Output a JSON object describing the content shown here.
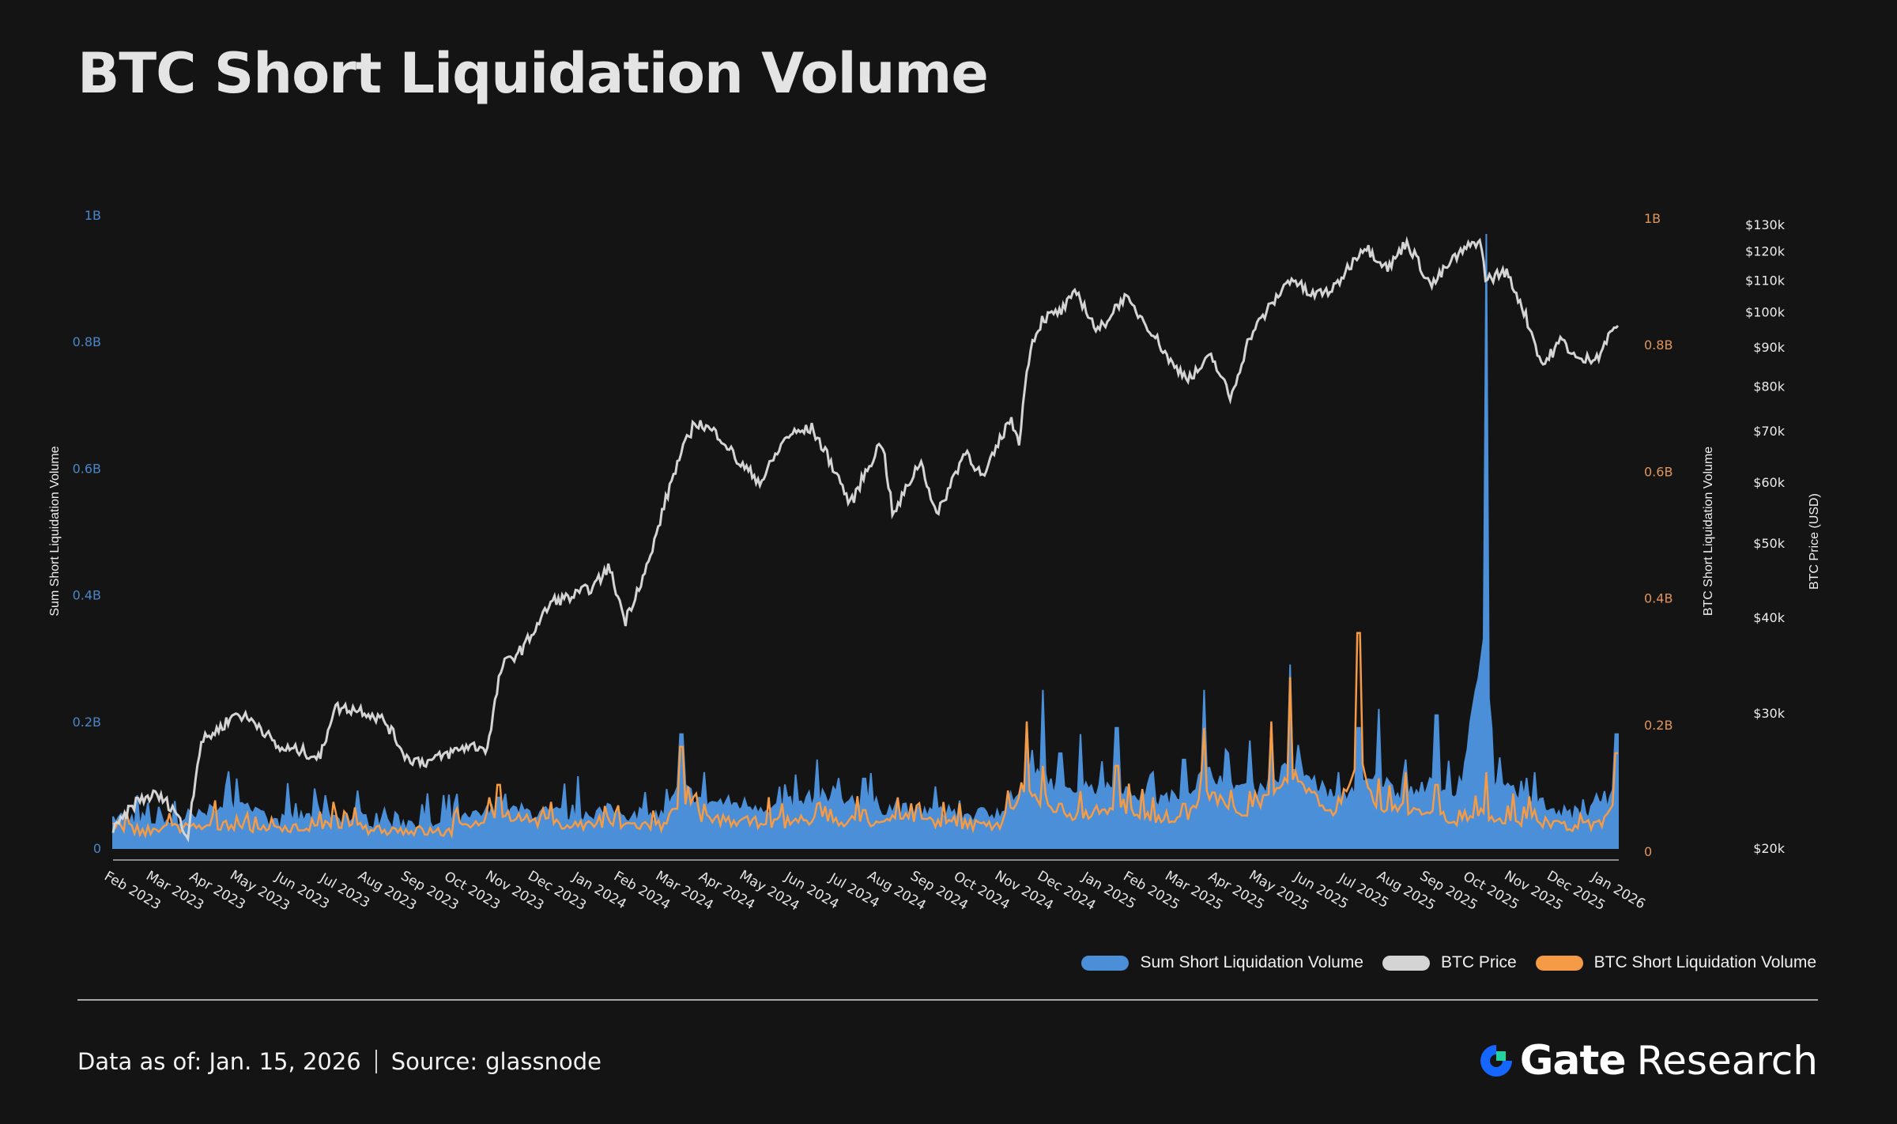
{
  "header": {
    "title": "BTC Short Liquidation Volume"
  },
  "colors": {
    "sum_short": "#4a8fd8",
    "btc_price": "#d4d4d4",
    "btc_short": "#f59a45",
    "background": "#141414",
    "brand_blue": "#1466ff",
    "brand_green": "#21d19f"
  },
  "legend": {
    "items": [
      {
        "label": "Sum Short Liquidation Volume",
        "color": "#4a8fd8"
      },
      {
        "label": "BTC Price",
        "color": "#d4d4d4"
      },
      {
        "label": "BTC Short Liquidation Volume",
        "color": "#f59a45"
      }
    ]
  },
  "footer": {
    "data_as_of": "Data as of: Jan. 15, 2026",
    "source_label": "Source:",
    "source_value": "glassnode",
    "brand_name": "Gate",
    "brand_suffix": "Research"
  },
  "chart_data": {
    "type": "line",
    "title": "BTC Short Liquidation Volume",
    "xlabel": "",
    "x_tick_labels": [
      "Feb 2023",
      "Mar 2023",
      "Apr 2023",
      "May 2023",
      "Jun 2023",
      "Jul 2023",
      "Aug 2023",
      "Sep 2023",
      "Oct 2023",
      "Nov 2023",
      "Dec 2023",
      "Jan 2024",
      "Feb 2024",
      "Mar 2024",
      "Apr 2024",
      "May 2024",
      "Jun 2024",
      "Jul 2024",
      "Aug 2024",
      "Sep 2024",
      "Oct 2024",
      "Nov 2024",
      "Dec 2024",
      "Jan 2025",
      "Feb 2025",
      "Mar 2025",
      "Apr 2025",
      "May 2025",
      "Jun 2025",
      "Jul 2025",
      "Aug 2025",
      "Sep 2025",
      "Oct 2025",
      "Nov 2025",
      "Dec 2025",
      "Jan 2026"
    ],
    "x_range": [
      "2023-01-15",
      "2026-01-15"
    ],
    "legend_position": "bottom-right",
    "grid": false,
    "axes": {
      "left": {
        "label": "Sum Short Liquidation Volume",
        "ticks": [
          "0",
          "0.2B",
          "0.4B",
          "0.6B",
          "0.8B",
          "1B"
        ],
        "tick_values": [
          0,
          0.2,
          0.4,
          0.6,
          0.8,
          1.0
        ],
        "range": [
          0,
          1.0
        ],
        "unit": "B USD"
      },
      "right": {
        "label": "BTC Short Liquidation Volume",
        "ticks": [
          "0",
          "0.2B",
          "0.4B",
          "0.6B",
          "0.8B",
          "1B"
        ],
        "tick_values": [
          0,
          0.2,
          0.4,
          0.6,
          0.8,
          1.0
        ],
        "range": [
          0,
          1.0
        ],
        "unit": "B USD"
      },
      "price": {
        "label": "BTC Price (USD)",
        "scale": "log",
        "ticks": [
          "$20k",
          "$30k",
          "$40k",
          "$50k",
          "$60k",
          "$70k",
          "$80k",
          "$90k",
          "$100k",
          "$110k",
          "$120k",
          "$130k"
        ],
        "tick_values": [
          20000,
          30000,
          40000,
          50000,
          60000,
          70000,
          80000,
          90000,
          100000,
          110000,
          120000,
          130000
        ],
        "range": [
          20000,
          130000
        ]
      }
    },
    "series": [
      {
        "name": "BTC Price",
        "axis": "price",
        "unit": "USD",
        "x": [
          "2023-01-15",
          "2023-02-01",
          "2023-02-15",
          "2023-03-01",
          "2023-03-10",
          "2023-03-20",
          "2023-04-01",
          "2023-04-15",
          "2023-05-01",
          "2023-05-15",
          "2023-06-01",
          "2023-06-15",
          "2023-06-25",
          "2023-07-15",
          "2023-08-01",
          "2023-08-17",
          "2023-09-01",
          "2023-09-15",
          "2023-10-01",
          "2023-10-15",
          "2023-10-25",
          "2023-11-10",
          "2023-12-01",
          "2023-12-15",
          "2024-01-01",
          "2024-01-11",
          "2024-01-23",
          "2024-02-10",
          "2024-02-28",
          "2024-03-14",
          "2024-04-01",
          "2024-04-15",
          "2024-05-01",
          "2024-05-20",
          "2024-06-07",
          "2024-06-25",
          "2024-07-05",
          "2024-07-28",
          "2024-08-05",
          "2024-08-25",
          "2024-09-06",
          "2024-09-27",
          "2024-10-10",
          "2024-10-29",
          "2024-11-05",
          "2024-11-13",
          "2024-11-22",
          "2024-12-05",
          "2024-12-17",
          "2025-01-01",
          "2025-01-20",
          "2025-02-05",
          "2025-02-25",
          "2025-03-10",
          "2025-03-25",
          "2025-04-08",
          "2025-04-22",
          "2025-05-10",
          "2025-05-22",
          "2025-06-05",
          "2025-06-22",
          "2025-07-14",
          "2025-08-01",
          "2025-08-14",
          "2025-09-01",
          "2025-09-18",
          "2025-10-06",
          "2025-10-11",
          "2025-10-25",
          "2025-11-05",
          "2025-11-21",
          "2025-12-05",
          "2025-12-18",
          "2026-01-01",
          "2026-01-14"
        ],
        "values": [
          21000,
          23000,
          23500,
          22500,
          20500,
          27500,
          28500,
          30000,
          29000,
          27000,
          26800,
          26200,
          30500,
          30300,
          29300,
          26200,
          25900,
          26500,
          27200,
          27000,
          34500,
          36500,
          42000,
          42500,
          44000,
          46500,
          39500,
          47500,
          62000,
          72000,
          69000,
          63500,
          60000,
          69000,
          70500,
          61500,
          56000,
          68000,
          54000,
          64000,
          54000,
          66000,
          60500,
          72500,
          68000,
          90000,
          98000,
          100000,
          106000,
          94000,
          104500,
          97000,
          85000,
          82000,
          87500,
          77000,
          93000,
          103500,
          111000,
          105000,
          107000,
          122000,
          114000,
          123500,
          108000,
          117500,
          124500,
          110000,
          113000,
          103000,
          85000,
          92000,
          86000,
          88000,
          96500
        ]
      },
      {
        "name": "Sum Short Liquidation Volume",
        "axis": "left",
        "unit": "B USD",
        "x": [
          "2023-01-15",
          "2023-02-09",
          "2023-03-15",
          "2023-04-15",
          "2023-05-10",
          "2023-06-20",
          "2023-07-13",
          "2023-08-20",
          "2023-09-15",
          "2023-10-23",
          "2023-12-05",
          "2024-01-10",
          "2024-02-20",
          "2024-03-04",
          "2024-03-20",
          "2024-05-15",
          "2024-06-10",
          "2024-07-15",
          "2024-08-08",
          "2024-09-19",
          "2024-10-20",
          "2024-11-11",
          "2024-11-22",
          "2024-12-05",
          "2024-12-20",
          "2025-01-15",
          "2025-02-10",
          "2025-03-05",
          "2025-03-20",
          "2025-04-22",
          "2025-05-08",
          "2025-05-22",
          "2025-06-25",
          "2025-07-10",
          "2025-07-25",
          "2025-08-13",
          "2025-09-05",
          "2025-09-22",
          "2025-10-11",
          "2025-10-15",
          "2025-11-15",
          "2025-12-10",
          "2026-01-05",
          "2026-01-14"
        ],
        "values": [
          0.05,
          0.03,
          0.04,
          0.11,
          0.02,
          0.06,
          0.04,
          0.02,
          0.01,
          0.08,
          0.06,
          0.07,
          0.05,
          0.18,
          0.12,
          0.09,
          0.14,
          0.11,
          0.08,
          0.06,
          0.06,
          0.2,
          0.25,
          0.15,
          0.18,
          0.19,
          0.12,
          0.14,
          0.25,
          0.17,
          0.2,
          0.29,
          0.12,
          0.19,
          0.22,
          0.14,
          0.21,
          0.11,
          0.97,
          0.19,
          0.12,
          0.06,
          0.09,
          0.18
        ]
      },
      {
        "name": "BTC Short Liquidation Volume",
        "axis": "right",
        "unit": "B USD",
        "x": [
          "2023-01-15",
          "2023-02-09",
          "2023-03-15",
          "2023-04-15",
          "2023-05-10",
          "2023-06-20",
          "2023-07-13",
          "2023-08-20",
          "2023-09-15",
          "2023-10-23",
          "2023-12-05",
          "2024-01-10",
          "2024-02-20",
          "2024-03-04",
          "2024-03-20",
          "2024-05-15",
          "2024-06-10",
          "2024-07-15",
          "2024-08-08",
          "2024-09-19",
          "2024-10-20",
          "2024-11-11",
          "2024-11-22",
          "2024-12-05",
          "2024-12-20",
          "2025-01-15",
          "2025-02-10",
          "2025-03-05",
          "2025-03-20",
          "2025-04-22",
          "2025-05-08",
          "2025-05-22",
          "2025-06-25",
          "2025-07-10",
          "2025-07-25",
          "2025-08-13",
          "2025-09-05",
          "2025-09-22",
          "2025-10-11",
          "2025-10-15",
          "2025-11-15",
          "2025-12-10",
          "2026-01-05",
          "2026-01-14"
        ],
        "values": [
          0.04,
          0.02,
          0.03,
          0.05,
          0.02,
          0.04,
          0.03,
          0.02,
          0.01,
          0.1,
          0.04,
          0.05,
          0.04,
          0.16,
          0.07,
          0.05,
          0.07,
          0.06,
          0.08,
          0.05,
          0.04,
          0.2,
          0.13,
          0.07,
          0.09,
          0.13,
          0.08,
          0.07,
          0.19,
          0.09,
          0.2,
          0.27,
          0.08,
          0.34,
          0.11,
          0.12,
          0.1,
          0.06,
          0.12,
          0.05,
          0.06,
          0.03,
          0.05,
          0.15
        ]
      }
    ]
  }
}
